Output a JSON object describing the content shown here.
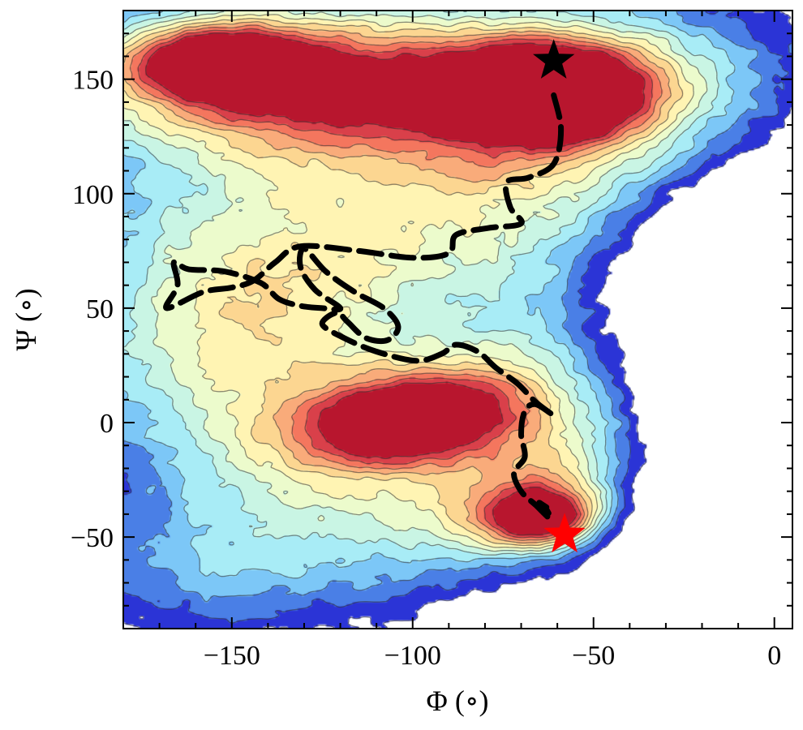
{
  "chart_data": {
    "type": "heatmap",
    "xlabel": "Φ (∘)",
    "ylabel": "Ψ (∘)",
    "xlim": [
      -180,
      5
    ],
    "ylim": [
      -90,
      180
    ],
    "xticks": [
      -150,
      -100,
      -50,
      0
    ],
    "yticks": [
      -50,
      0,
      50,
      100,
      150
    ],
    "colormap": [
      "#2b34d6",
      "#4a7fe6",
      "#7cc7f7",
      "#a8ecf6",
      "#c9f5e4",
      "#ecfbcc",
      "#fff4b3",
      "#fcd691",
      "#f9ab7a",
      "#f4765e",
      "#d9404a",
      "#b8162e"
    ],
    "basins": [
      {
        "phi": -62,
        "psi": 145,
        "depth": 1.0
      },
      {
        "phi": -155,
        "psi": 158,
        "depth": 0.72
      },
      {
        "phi": -120,
        "psi": 145,
        "depth": 0.55
      },
      {
        "phi": -100,
        "psi": 0,
        "depth": 0.82
      },
      {
        "phi": -63,
        "psi": -42,
        "depth": 0.9
      },
      {
        "phi": -155,
        "psi": 25,
        "depth": 0.45
      }
    ],
    "transition_path": [
      [
        -61,
        143
      ],
      [
        -59,
        128
      ],
      [
        -61,
        113
      ],
      [
        -68,
        107
      ],
      [
        -74,
        105
      ],
      [
        -73,
        94
      ],
      [
        -70,
        87
      ],
      [
        -79,
        85
      ],
      [
        -88,
        82
      ],
      [
        -90,
        74
      ],
      [
        -100,
        72
      ],
      [
        -115,
        75
      ],
      [
        -131,
        77
      ],
      [
        -138,
        70
      ],
      [
        -144,
        62
      ],
      [
        -150,
        59
      ],
      [
        -158,
        57
      ],
      [
        -168,
        50
      ],
      [
        -165,
        60
      ],
      [
        -166,
        70
      ],
      [
        -162,
        67
      ],
      [
        -152,
        66
      ],
      [
        -142,
        61
      ],
      [
        -137,
        54
      ],
      [
        -131,
        51
      ],
      [
        -125,
        50
      ],
      [
        -120,
        50
      ],
      [
        -127,
        58
      ],
      [
        -131,
        68
      ],
      [
        -130,
        76
      ],
      [
        -124,
        66
      ],
      [
        -116,
        57
      ],
      [
        -108,
        50
      ],
      [
        -104,
        42
      ],
      [
        -107,
        36
      ],
      [
        -113,
        37
      ],
      [
        -118,
        44
      ],
      [
        -121,
        48
      ],
      [
        -125,
        43
      ],
      [
        -119,
        37
      ],
      [
        -110,
        31
      ],
      [
        -99,
        27
      ],
      [
        -92,
        30
      ],
      [
        -88,
        34
      ],
      [
        -82,
        31
      ],
      [
        -77,
        24
      ],
      [
        -71,
        17
      ],
      [
        -66,
        9
      ],
      [
        -61,
        3
      ],
      [
        -66,
        8
      ],
      [
        -69,
        5
      ],
      [
        -70,
        -5
      ],
      [
        -69,
        -15
      ],
      [
        -72,
        -22
      ],
      [
        -70,
        -30
      ],
      [
        -66,
        -36
      ],
      [
        -62,
        -42
      ],
      [
        -63,
        -38
      ],
      [
        -65,
        -35
      ],
      [
        -63,
        -37
      ]
    ],
    "start_marker": {
      "phi": -61,
      "psi": 158,
      "color": "#000000"
    },
    "end_marker": {
      "phi": -58,
      "psi": -49,
      "color": "#ff0000"
    }
  }
}
